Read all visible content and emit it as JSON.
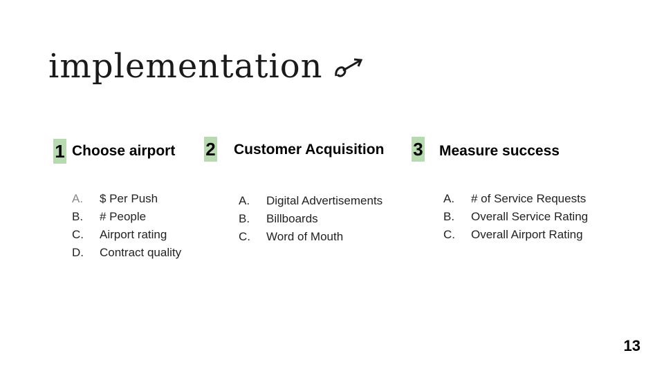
{
  "slide": {
    "title": "implementation",
    "page_number": "13",
    "accent_color": "#b8dab0"
  },
  "columns": [
    {
      "number": "1",
      "heading": "Choose airport",
      "items": [
        {
          "letter": "A.",
          "text": "$ Per Push"
        },
        {
          "letter": "B.",
          "text": "# People"
        },
        {
          "letter": "C.",
          "text": "Airport rating"
        },
        {
          "letter": "D.",
          "text": "Contract quality"
        }
      ]
    },
    {
      "number": "2",
      "heading": "Customer Acquisition",
      "items": [
        {
          "letter": "A.",
          "text": "Digital Advertisements"
        },
        {
          "letter": "B.",
          "text": "Billboards"
        },
        {
          "letter": "C.",
          "text": "Word of Mouth"
        }
      ]
    },
    {
      "number": "3",
      "heading": "Measure success",
      "items": [
        {
          "letter": "A.",
          "text": "# of Service Requests"
        },
        {
          "letter": "B.",
          "text": "Overall Service Rating"
        },
        {
          "letter": "C.",
          "text": "Overall Airport Rating"
        }
      ]
    }
  ]
}
